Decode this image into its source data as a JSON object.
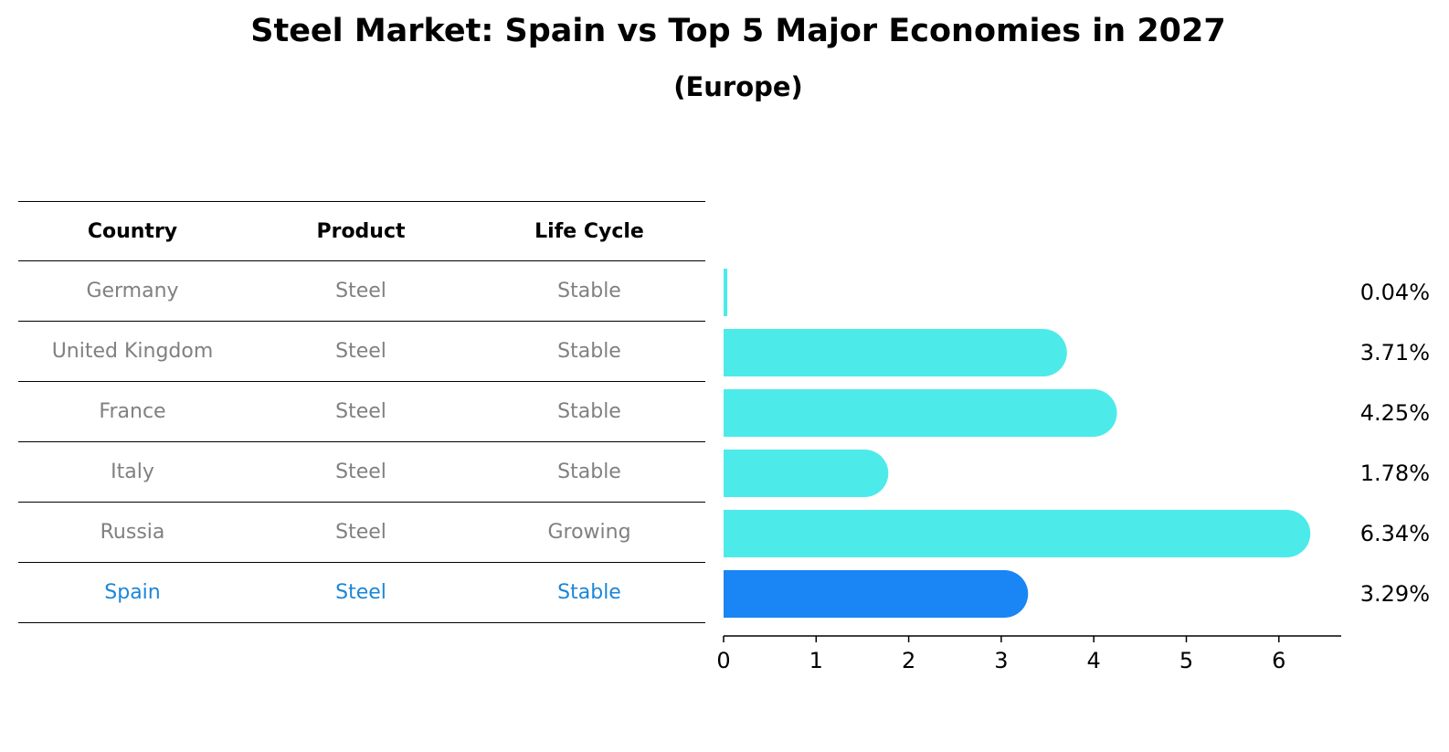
{
  "title": "Steel Market: Spain vs Top 5 Major Economies in 2027",
  "subtitle": "(Europe)",
  "table": {
    "headers": [
      "Country",
      "Product",
      "Life Cycle"
    ],
    "rows": [
      {
        "country": "Germany",
        "product": "Steel",
        "life_cycle": "Stable"
      },
      {
        "country": "United Kingdom",
        "product": "Steel",
        "life_cycle": "Stable"
      },
      {
        "country": "France",
        "product": "Steel",
        "life_cycle": "Stable"
      },
      {
        "country": "Italy",
        "product": "Steel",
        "life_cycle": "Stable"
      },
      {
        "country": "Russia",
        "product": "Steel",
        "life_cycle": "Growing"
      },
      {
        "country": "Spain",
        "product": "Steel",
        "life_cycle": "Stable"
      }
    ],
    "highlight_row": "Spain"
  },
  "colors": {
    "bar": "#4deaea",
    "highlight_bar": "#1a85f5",
    "highlight_text": "#1c86d8",
    "muted_text": "#808080"
  },
  "chart_data": {
    "type": "bar",
    "orientation": "horizontal",
    "categories": [
      "Germany",
      "United Kingdom",
      "France",
      "Italy",
      "Russia",
      "Spain"
    ],
    "values": [
      0.04,
      3.71,
      4.25,
      1.78,
      6.34,
      3.29
    ],
    "value_labels": [
      "0.04%",
      "3.71%",
      "4.25%",
      "1.78%",
      "6.34%",
      "3.29%"
    ],
    "highlight": "Spain",
    "xticks": [
      0,
      1,
      2,
      3,
      4,
      5,
      6
    ],
    "xlim": [
      0,
      6.66
    ],
    "grid": false
  }
}
